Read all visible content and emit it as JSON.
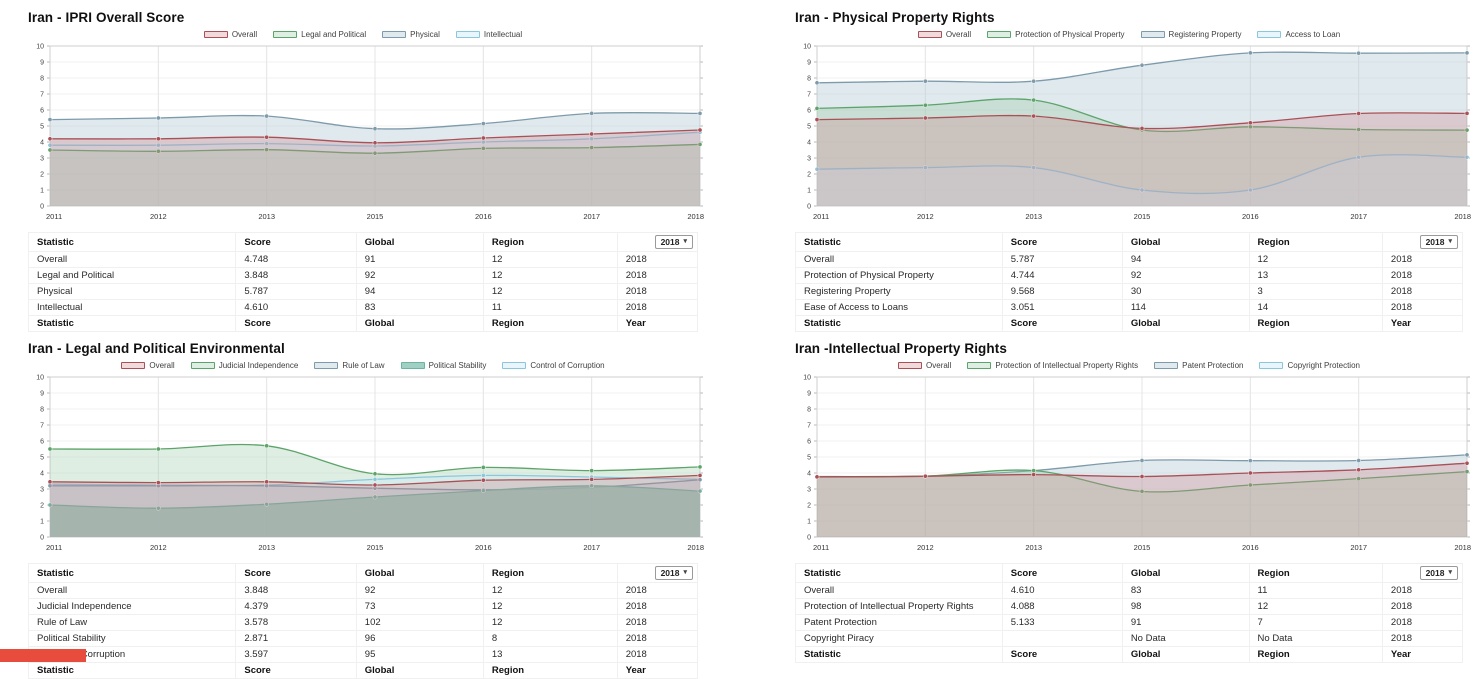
{
  "ui": {
    "caret": "▾"
  },
  "colors": {
    "red": {
      "line": "#a95157",
      "fill": "rgba(204,133,138,0.30)"
    },
    "green": {
      "line": "#5da46a",
      "fill": "rgba(150,200,158,0.30)"
    },
    "slate": {
      "line": "#7e9bab",
      "fill": "rgba(173,197,208,0.38)"
    },
    "lightblue": {
      "line": "#8cc6dd",
      "fill": "rgba(205,233,244,0.45)"
    },
    "teal": {
      "line": "#6cb3a2",
      "fill": "rgba(136,196,181,0.80)"
    }
  },
  "chart_data": [
    {
      "id": "ipri-overall",
      "type": "area",
      "title_prefix": "Iran - ",
      "title": "IPRI Overall Score",
      "x_labels": [
        "2011",
        "2012",
        "2013",
        "2015",
        "2016",
        "2017",
        "2018"
      ],
      "ylim": [
        0,
        10
      ],
      "legend": [
        {
          "label": "Overall",
          "color": "red"
        },
        {
          "label": "Legal and Political",
          "color": "green"
        },
        {
          "label": "Physical",
          "color": "slate"
        },
        {
          "label": "Intellectual",
          "color": "lightblue"
        }
      ],
      "series": [
        {
          "name": "Physical",
          "color": "slate",
          "values": [
            5.4,
            5.5,
            5.62,
            4.83,
            5.15,
            5.79,
            5.787
          ]
        },
        {
          "name": "Intellectual",
          "color": "lightblue",
          "values": [
            3.8,
            3.8,
            3.9,
            3.75,
            4.0,
            4.2,
            4.61
          ]
        },
        {
          "name": "Legal and Political",
          "color": "green",
          "values": [
            3.5,
            3.42,
            3.52,
            3.3,
            3.6,
            3.65,
            3.848
          ]
        },
        {
          "name": "Overall",
          "color": "red",
          "values": [
            4.2,
            4.2,
            4.3,
            3.95,
            4.25,
            4.5,
            4.748
          ]
        }
      ],
      "table": {
        "headers": [
          "Statistic",
          "Score",
          "Global",
          "Region"
        ],
        "year_selector": "2018",
        "rows": [
          [
            "Overall",
            "4.748",
            "91",
            "12",
            "2018"
          ],
          [
            "Legal and Political",
            "3.848",
            "92",
            "12",
            "2018"
          ],
          [
            "Physical",
            "5.787",
            "94",
            "12",
            "2018"
          ],
          [
            "Intellectual",
            "4.610",
            "83",
            "11",
            "2018"
          ]
        ],
        "footer": [
          "Statistic",
          "Score",
          "Global",
          "Region",
          "Year"
        ]
      }
    },
    {
      "id": "physical-property-rights",
      "type": "area",
      "title_prefix": "Iran - ",
      "title": "Physical Property Rights",
      "x_labels": [
        "2011",
        "2012",
        "2013",
        "2015",
        "2016",
        "2017",
        "2018"
      ],
      "ylim": [
        0,
        10
      ],
      "legend": [
        {
          "label": "Overall",
          "color": "red"
        },
        {
          "label": "Protection of Physical Property",
          "color": "green"
        },
        {
          "label": "Registering Property",
          "color": "slate"
        },
        {
          "label": "Access to Loan",
          "color": "lightblue"
        }
      ],
      "series": [
        {
          "name": "Registering Property",
          "color": "slate",
          "values": [
            7.7,
            7.8,
            7.8,
            8.8,
            9.57,
            9.55,
            9.568
          ]
        },
        {
          "name": "Protection of Physical Property",
          "color": "green",
          "values": [
            6.1,
            6.3,
            6.62,
            4.75,
            4.95,
            4.78,
            4.744
          ]
        },
        {
          "name": "Access to Loan",
          "color": "lightblue",
          "values": [
            2.3,
            2.4,
            2.4,
            1.0,
            1.0,
            3.05,
            3.051
          ]
        },
        {
          "name": "Overall",
          "color": "red",
          "values": [
            5.4,
            5.5,
            5.62,
            4.85,
            5.2,
            5.78,
            5.787
          ]
        }
      ],
      "table": {
        "headers": [
          "Statistic",
          "Score",
          "Global",
          "Region"
        ],
        "year_selector": "2018",
        "rows": [
          [
            "Overall",
            "5.787",
            "94",
            "12",
            "2018"
          ],
          [
            "Protection of Physical Property",
            "4.744",
            "92",
            "13",
            "2018"
          ],
          [
            "Registering Property",
            "9.568",
            "30",
            "3",
            "2018"
          ],
          [
            "Ease of Access to Loans",
            "3.051",
            "114",
            "14",
            "2018"
          ]
        ],
        "footer": [
          "Statistic",
          "Score",
          "Global",
          "Region",
          "Year"
        ]
      }
    },
    {
      "id": "legal-political-environment",
      "type": "area",
      "title_prefix": "Iran - ",
      "title": "Legal and Political Environmental",
      "x_labels": [
        "2011",
        "2012",
        "2013",
        "2015",
        "2016",
        "2017",
        "2018"
      ],
      "ylim": [
        0,
        10
      ],
      "legend": [
        {
          "label": "Overall",
          "color": "red"
        },
        {
          "label": "Judicial Independence",
          "color": "green"
        },
        {
          "label": "Rule of Law",
          "color": "slate"
        },
        {
          "label": "Political Stability",
          "color": "teal"
        },
        {
          "label": "Control of Corruption",
          "color": "lightblue"
        }
      ],
      "series": [
        {
          "name": "Judicial Independence",
          "color": "green",
          "values": [
            5.5,
            5.5,
            5.7,
            3.95,
            4.35,
            4.15,
            4.379
          ]
        },
        {
          "name": "Control of Corruption",
          "color": "lightblue",
          "values": [
            3.3,
            3.25,
            3.25,
            3.6,
            3.85,
            3.75,
            3.597
          ]
        },
        {
          "name": "Rule of Law",
          "color": "slate",
          "values": [
            3.2,
            3.2,
            3.2,
            3.05,
            2.95,
            3.1,
            3.578
          ]
        },
        {
          "name": "Political Stability",
          "color": "teal",
          "values": [
            2.0,
            1.8,
            2.05,
            2.5,
            2.9,
            3.2,
            2.871
          ]
        },
        {
          "name": "Overall",
          "color": "red",
          "values": [
            3.45,
            3.4,
            3.45,
            3.25,
            3.55,
            3.6,
            3.848
          ]
        }
      ],
      "table": {
        "headers": [
          "Statistic",
          "Score",
          "Global",
          "Region"
        ],
        "year_selector": "2018",
        "rows": [
          [
            "Overall",
            "3.848",
            "92",
            "12",
            "2018"
          ],
          [
            "Judicial Independence",
            "4.379",
            "73",
            "12",
            "2018"
          ],
          [
            "Rule of Law",
            "3.578",
            "102",
            "12",
            "2018"
          ],
          [
            "Political Stability",
            "2.871",
            "96",
            "8",
            "2018"
          ],
          [
            "Control of Corruption",
            "3.597",
            "95",
            "13",
            "2018"
          ]
        ],
        "footer": [
          "Statistic",
          "Score",
          "Global",
          "Region",
          "Year"
        ]
      }
    },
    {
      "id": "intellectual-property-rights",
      "type": "area",
      "title_prefix": "Iran -",
      "title": "Intellectual Property Rights",
      "x_labels": [
        "2011",
        "2012",
        "2013",
        "2015",
        "2016",
        "2017",
        "2018"
      ],
      "ylim": [
        0,
        10
      ],
      "legend": [
        {
          "label": "Overall",
          "color": "red"
        },
        {
          "label": "Protection of Intellectual Property Rights",
          "color": "green"
        },
        {
          "label": "Patent Protection",
          "color": "slate"
        },
        {
          "label": "Copyright Protection",
          "color": "lightblue"
        }
      ],
      "series": [
        {
          "name": "Patent Protection",
          "color": "slate",
          "values": [
            3.78,
            3.8,
            4.15,
            4.78,
            4.77,
            4.78,
            5.133
          ]
        },
        {
          "name": "Protection of Intellectual Property Rights",
          "color": "green",
          "values": [
            3.75,
            3.8,
            4.15,
            2.85,
            3.25,
            3.65,
            4.088
          ]
        },
        {
          "name": "Overall",
          "color": "red",
          "values": [
            3.76,
            3.8,
            3.9,
            3.78,
            4.0,
            4.2,
            4.61
          ]
        },
        {
          "name": "Copyright Protection",
          "color": "lightblue",
          "values": null
        }
      ],
      "table": {
        "headers": [
          "Statistic",
          "Score",
          "Global",
          "Region"
        ],
        "year_selector": "2018",
        "rows": [
          [
            "Overall",
            "4.610",
            "83",
            "11",
            "2018"
          ],
          [
            "Protection of Intellectual Property Rights",
            "4.088",
            "98",
            "12",
            "2018"
          ],
          [
            "Patent Protection",
            "5.133",
            "91",
            "7",
            "2018"
          ],
          [
            "Copyright Piracy",
            "",
            "No Data",
            "No Data",
            "2018"
          ]
        ],
        "footer": [
          "Statistic",
          "Score",
          "Global",
          "Region",
          "Year"
        ]
      }
    }
  ]
}
